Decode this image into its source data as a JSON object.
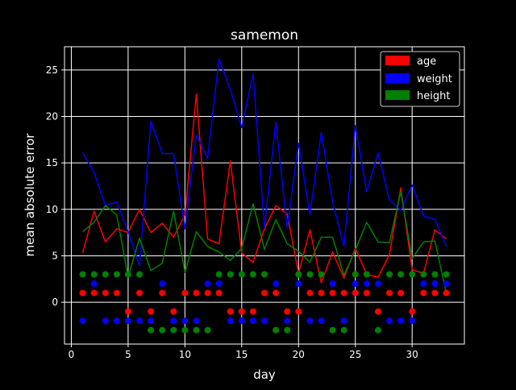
{
  "chart_data": {
    "type": "line",
    "title": "samemon",
    "xlabel": "day",
    "ylabel": "mean absolute error",
    "xlim": [
      -0.6,
      34.6
    ],
    "ylim": [
      -4.5,
      27.5
    ],
    "xticks": [
      0,
      5,
      10,
      15,
      20,
      25,
      30
    ],
    "yticks": [
      0,
      5,
      10,
      15,
      20,
      25
    ],
    "grid": true,
    "legend_position": "upper right",
    "x": [
      1,
      2,
      3,
      4,
      5,
      6,
      7,
      8,
      9,
      10,
      11,
      12,
      13,
      14,
      15,
      16,
      17,
      18,
      19,
      20,
      21,
      22,
      23,
      24,
      25,
      26,
      27,
      28,
      29,
      30,
      31,
      32,
      33
    ],
    "series": [
      {
        "name": "age",
        "color": "#ff0000",
        "values": [
          5.3,
          9.8,
          6.5,
          7.9,
          7.5,
          10.0,
          7.5,
          8.5,
          7.0,
          9.4,
          22.4,
          6.8,
          6.3,
          15.2,
          5.3,
          4.3,
          7.9,
          10.4,
          9.5,
          3.1,
          7.8,
          2.1,
          5.4,
          2.6,
          5.8,
          3.0,
          2.7,
          5.1,
          12.3,
          3.5,
          3.1,
          7.8,
          6.8
        ],
        "markers": [
          1,
          1,
          1,
          1,
          -1,
          1,
          -1,
          1,
          -1,
          1,
          1,
          1,
          1,
          -1,
          -1,
          -1,
          1,
          1,
          -1,
          -1,
          1,
          1,
          1,
          1,
          1,
          1,
          -1,
          1,
          1,
          -1,
          1,
          1,
          1
        ]
      },
      {
        "name": "weight",
        "color": "#0000ff",
        "values": [
          16.1,
          14.0,
          10.4,
          10.8,
          7.6,
          3.9,
          19.5,
          16.0,
          16.0,
          7.9,
          18.0,
          15.5,
          26.2,
          22.9,
          18.8,
          24.6,
          8.0,
          19.4,
          8.0,
          17.1,
          9.4,
          18.3,
          10.8,
          6.0,
          19.0,
          11.9,
          16.1,
          11.0,
          9.9,
          12.6,
          9.3,
          8.9,
          6.0
        ],
        "markers": [
          -2,
          2,
          -2,
          -2,
          -2,
          -2,
          -2,
          2,
          -2,
          -2,
          -2,
          2,
          2,
          -2,
          -2,
          -2,
          -2,
          2,
          -2,
          2,
          -2,
          -2,
          2,
          -2,
          2,
          2,
          2,
          -2,
          -2,
          -2,
          2,
          2,
          2
        ]
      },
      {
        "name": "height",
        "color": "#008000",
        "values": [
          7.6,
          8.6,
          10.4,
          9.4,
          2.7,
          6.9,
          3.4,
          4.2,
          9.8,
          3.2,
          7.6,
          6.0,
          5.4,
          4.5,
          5.8,
          10.6,
          5.7,
          8.9,
          6.3,
          5.5,
          4.3,
          7.0,
          7.0,
          2.9,
          5.6,
          8.6,
          6.5,
          6.4,
          11.9,
          4.7,
          6.5,
          6.6,
          1.0
        ],
        "markers": [
          3,
          3,
          3,
          3,
          3,
          3,
          -3,
          -3,
          -3,
          -3,
          -3,
          -3,
          3,
          3,
          3,
          3,
          3,
          -3,
          -3,
          3,
          3,
          3,
          -3,
          -3,
          3,
          3,
          -3,
          3,
          3,
          3,
          3,
          3,
          3
        ]
      }
    ]
  }
}
